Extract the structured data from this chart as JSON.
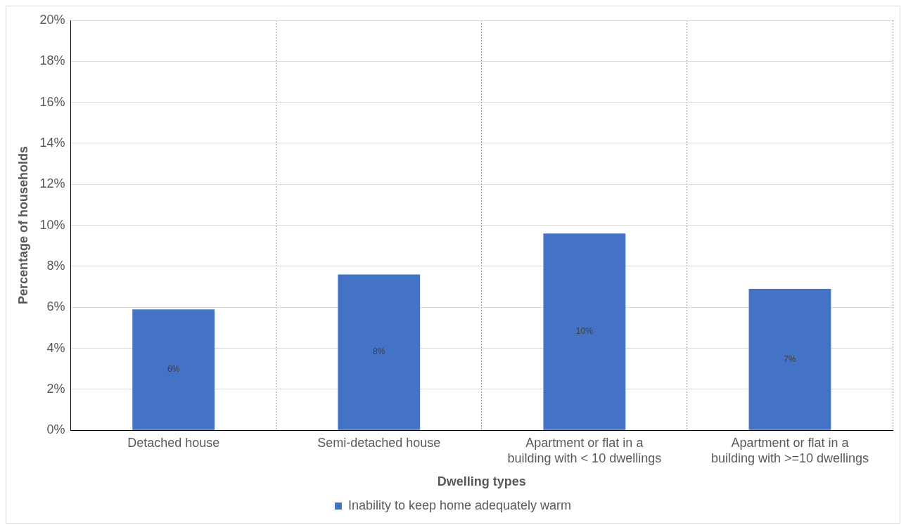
{
  "chart_data": {
    "type": "bar",
    "xlabel": "Dwelling types",
    "ylabel": "Percentage of households",
    "categories": [
      "Detached house",
      "Semi-detached house",
      "Apartment or flat in a building with < 10 dwellings",
      "Apartment or flat in a building with >=10 dwellings"
    ],
    "series": [
      {
        "name": "Inability to keep home adequately warm",
        "color": "#4472c4",
        "values": [
          5.9,
          7.6,
          9.6,
          6.9
        ],
        "value_labels": [
          "6%",
          "8%",
          "10%",
          "7%"
        ]
      }
    ],
    "ylim": [
      0,
      20
    ],
    "yticks": [
      {
        "value": 0,
        "label": "0%"
      },
      {
        "value": 2,
        "label": "2%"
      },
      {
        "value": 4,
        "label": "4%"
      },
      {
        "value": 6,
        "label": "6%"
      },
      {
        "value": 8,
        "label": "8%"
      },
      {
        "value": 10,
        "label": "10%"
      },
      {
        "value": 12,
        "label": "12%"
      },
      {
        "value": 14,
        "label": "14%"
      },
      {
        "value": 16,
        "label": "16%"
      },
      {
        "value": 18,
        "label": "18%"
      },
      {
        "value": 20,
        "label": "20%"
      }
    ],
    "grid": true,
    "legend": "bottom"
  }
}
